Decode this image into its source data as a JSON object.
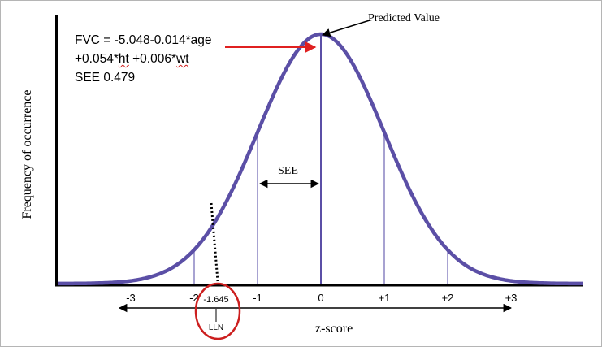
{
  "equation": {
    "line1": "FVC = -5.048-0.014*age",
    "line2_a": "+0.054*",
    "line2_b": "ht",
    "line2_c": " +0.006*",
    "line2_d": "wt",
    "line3": "SEE 0.479"
  },
  "labels": {
    "y_axis": "Frequency of occurrence",
    "x_axis": "z-score",
    "predicted_value": "Predicted Value",
    "see": "SEE",
    "lln_value": "-1.645",
    "lln": "LLN"
  },
  "ticks": [
    {
      "z": -3,
      "label": "-3"
    },
    {
      "z": -2,
      "label": "-2"
    },
    {
      "z": -1,
      "label": "-1"
    },
    {
      "z": 0,
      "label": "0"
    },
    {
      "z": 1,
      "label": "+1"
    },
    {
      "z": 2,
      "label": "+2"
    },
    {
      "z": 3,
      "label": "+3"
    }
  ],
  "colors": {
    "curve": "#5b4fa6",
    "sd_lines": "#8a84c2",
    "arrow_red": "#e02020",
    "circle_red": "#cc1f1f",
    "axis": "#000000"
  }
}
